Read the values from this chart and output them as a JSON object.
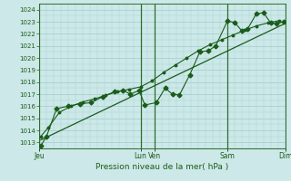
{
  "xlabel": "Pression niveau de la mer( hPa )",
  "bg_color": "#cce8e8",
  "grid_color": "#a8d0d0",
  "line_color": "#1a5c1a",
  "vline_color": "#2d6e2d",
  "ylim": [
    1012.5,
    1024.5
  ],
  "xlim": [
    0,
    8.5
  ],
  "yticks": [
    1013,
    1014,
    1015,
    1016,
    1017,
    1018,
    1019,
    1020,
    1021,
    1022,
    1023,
    1024
  ],
  "day_positions": [
    0.0,
    3.5,
    4.0,
    6.5,
    8.5
  ],
  "day_labels": [
    "Jeu",
    "Lun",
    "Ven",
    "Sam",
    "Dim"
  ],
  "vline_positions": [
    0.0,
    3.5,
    4.0,
    6.5,
    8.5
  ],
  "series1_x": [
    0.05,
    0.25,
    0.6,
    1.0,
    1.4,
    1.8,
    2.2,
    2.6,
    2.9,
    3.15,
    3.45,
    3.65,
    4.05,
    4.35,
    4.6,
    4.85,
    5.2,
    5.55,
    5.85,
    6.1,
    6.5,
    6.75,
    7.0,
    7.2,
    7.5,
    7.75,
    8.0,
    8.2,
    8.45
  ],
  "series1_y": [
    1012.7,
    1013.5,
    1015.8,
    1016.0,
    1016.2,
    1016.3,
    1016.8,
    1017.2,
    1017.3,
    1017.0,
    1017.3,
    1016.1,
    1016.3,
    1017.5,
    1017.0,
    1016.95,
    1018.6,
    1020.5,
    1020.6,
    1021.0,
    1023.05,
    1022.95,
    1022.25,
    1022.4,
    1023.65,
    1023.75,
    1022.9,
    1022.85,
    1023.0
  ],
  "series2_x": [
    0.05,
    0.3,
    0.7,
    1.1,
    1.5,
    1.9,
    2.3,
    2.7,
    3.1,
    3.5,
    3.9,
    4.3,
    4.7,
    5.1,
    5.5,
    5.9,
    6.3,
    6.7,
    7.1,
    7.5,
    7.9,
    8.3
  ],
  "series2_y": [
    1013.5,
    1014.2,
    1015.5,
    1016.0,
    1016.35,
    1016.6,
    1016.9,
    1017.2,
    1017.4,
    1017.6,
    1018.1,
    1018.8,
    1019.4,
    1020.0,
    1020.6,
    1021.1,
    1021.5,
    1021.9,
    1022.3,
    1022.65,
    1022.9,
    1023.1
  ],
  "series3_x": [
    0.05,
    8.45
  ],
  "series3_y": [
    1013.2,
    1022.8
  ]
}
